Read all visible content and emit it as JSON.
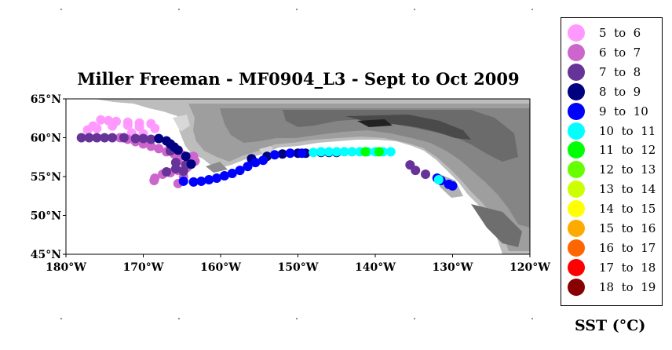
{
  "title": "Miller Freeman - MF0904_L3 - Sept to Oct 2009",
  "axes": {
    "lon_range": [
      -180,
      -120
    ],
    "lat_range": [
      45,
      65
    ],
    "x_ticks": [
      "180°W",
      "170°W",
      "160°W",
      "150°W",
      "140°W",
      "130°W",
      "120°W"
    ],
    "y_ticks": [
      "65°N",
      "60°N",
      "55°N",
      "50°N",
      "45°N"
    ]
  },
  "legend": {
    "unit_label": "SST (°C)",
    "items": [
      {
        "label": "5  to  6",
        "color": "#ff99ff"
      },
      {
        "label": "6  to  7",
        "color": "#cc66cc"
      },
      {
        "label": "7  to  8",
        "color": "#663399"
      },
      {
        "label": "8  to  9",
        "color": "#000080"
      },
      {
        "label": "9  to  10",
        "color": "#0000ff"
      },
      {
        "label": "10  to  11",
        "color": "#00ffff"
      },
      {
        "label": "11  to  12",
        "color": "#00ff00"
      },
      {
        "label": "12  to  13",
        "color": "#66ff00"
      },
      {
        "label": "13  to  14",
        "color": "#ccff00"
      },
      {
        "label": "14  to  15",
        "color": "#ffff00"
      },
      {
        "label": "15  to  16",
        "color": "#ffaa00"
      },
      {
        "label": "16  to  17",
        "color": "#ff6600"
      },
      {
        "label": "17  to  18",
        "color": "#ff0000"
      },
      {
        "label": "18  to  19",
        "color": "#880000"
      }
    ]
  },
  "chart_data": {
    "type": "scatter",
    "x_label": "",
    "y_label": "",
    "xlim": [
      -180,
      -120
    ],
    "ylim": [
      45,
      65
    ],
    "tracks": [
      {
        "sst_class": 0,
        "points": [
          [
            -175.5,
            62.3
          ],
          [
            -174.5,
            62.2
          ],
          [
            -173.5,
            62.1
          ],
          [
            -172,
            62.0
          ],
          [
            -170.5,
            61.9
          ],
          [
            -169,
            61.8
          ],
          [
            -176.5,
            61.5
          ],
          [
            -177.2,
            61.0
          ],
          [
            -176,
            61.2
          ],
          [
            -174,
            61.5
          ],
          [
            -172,
            61.6
          ],
          [
            -170.5,
            61.4
          ],
          [
            -168.5,
            61.2
          ],
          [
            -171.5,
            60.6
          ],
          [
            -170,
            60.5
          ]
        ]
      },
      {
        "sst_class": 1,
        "points": [
          [
            -173,
            60.0
          ],
          [
            -172,
            59.8
          ],
          [
            -171,
            59.5
          ],
          [
            -170,
            59.2
          ],
          [
            -169,
            58.9
          ],
          [
            -168,
            58.6
          ],
          [
            -167,
            58.2
          ],
          [
            -166,
            57.9
          ],
          [
            -165,
            57.8
          ],
          [
            -164,
            57.5
          ],
          [
            -163.5,
            57.6
          ],
          [
            -163.3,
            57.0
          ],
          [
            -164.3,
            56.2
          ],
          [
            -165.5,
            55.8
          ],
          [
            -166.5,
            55.5
          ],
          [
            -167.5,
            55.3
          ],
          [
            -168.5,
            54.8
          ],
          [
            -168.6,
            54.5
          ],
          [
            -165.5,
            54.1
          ],
          [
            -164.8,
            55.0
          ],
          [
            -165.5,
            57.0
          ],
          [
            -166.5,
            59.0
          ]
        ]
      },
      {
        "sst_class": 2,
        "points": [
          [
            -178,
            60.0
          ],
          [
            -177,
            60.0
          ],
          [
            -176,
            60.0
          ],
          [
            -175,
            60.0
          ],
          [
            -174,
            60.0
          ],
          [
            -172.5,
            60.0
          ],
          [
            -171,
            59.9
          ],
          [
            -170,
            59.9
          ],
          [
            -169,
            59.8
          ],
          [
            -166.5,
            58.3
          ],
          [
            -165.8,
            56.8
          ],
          [
            -164.8,
            55.7
          ],
          [
            -165.8,
            56.0
          ],
          [
            -167,
            55.6
          ],
          [
            -164.5,
            56.5
          ],
          [
            -135.5,
            56.5
          ],
          [
            -134.8,
            55.8
          ],
          [
            -133.5,
            55.3
          ]
        ]
      },
      {
        "sst_class": 3,
        "points": [
          [
            -168,
            59.9
          ],
          [
            -167,
            59.6
          ],
          [
            -166.5,
            59.2
          ],
          [
            -166,
            58.8
          ],
          [
            -165.5,
            58.4
          ],
          [
            -164.5,
            57.6
          ],
          [
            -163.8,
            56.6
          ],
          [
            -156,
            57.3
          ],
          [
            -154,
            57.6
          ],
          [
            -152,
            57.9
          ],
          [
            -150,
            58.0
          ],
          [
            -149,
            58.0
          ],
          [
            -147,
            58.1
          ],
          [
            -146,
            58.1
          ],
          [
            -145,
            58.1
          ]
        ]
      },
      {
        "sst_class": 4,
        "points": [
          [
            -164.8,
            54.4
          ],
          [
            -163.5,
            54.3
          ],
          [
            -162.5,
            54.4
          ],
          [
            -161.5,
            54.6
          ],
          [
            -160.5,
            54.8
          ],
          [
            -159.5,
            55.1
          ],
          [
            -158.5,
            55.4
          ],
          [
            -157.5,
            55.8
          ],
          [
            -156.5,
            56.3
          ],
          [
            -155.5,
            56.8
          ],
          [
            -154.5,
            57.1
          ],
          [
            -153,
            57.8
          ],
          [
            -151,
            58.0
          ],
          [
            -149.5,
            58.0
          ],
          [
            -131.5,
            54.5
          ],
          [
            -130.5,
            54.0
          ],
          [
            -130,
            53.8
          ],
          [
            -132,
            54.8
          ]
        ]
      },
      {
        "sst_class": 5,
        "points": [
          [
            -148,
            58.1
          ],
          [
            -147,
            58.2
          ],
          [
            -146,
            58.2
          ],
          [
            -145,
            58.2
          ],
          [
            -144,
            58.2
          ],
          [
            -143,
            58.2
          ],
          [
            -142,
            58.2
          ],
          [
            -141,
            58.2
          ],
          [
            -140,
            58.2
          ],
          [
            -139,
            58.2
          ],
          [
            -138,
            58.2
          ],
          [
            -131.8,
            54.6
          ]
        ]
      },
      {
        "sst_class": 6,
        "points": [
          [
            -141.3,
            58.2
          ],
          [
            -139.5,
            58.2
          ]
        ]
      }
    ]
  }
}
